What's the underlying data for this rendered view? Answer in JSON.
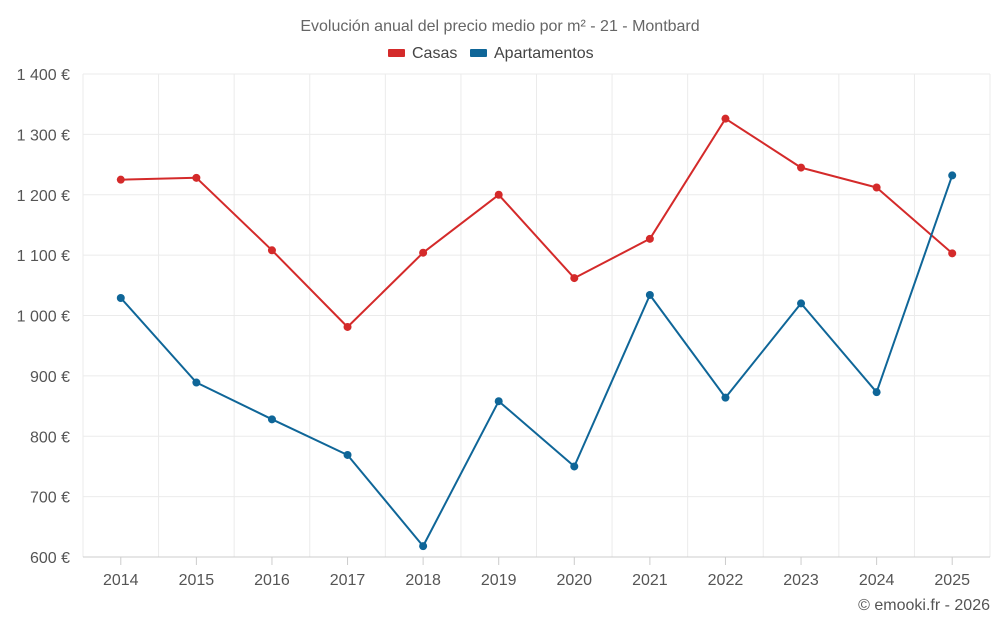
{
  "chart_data": {
    "type": "line",
    "title": "Evolución anual del precio medio por m² - 21 - Montbard",
    "xlabel": "",
    "ylabel": "",
    "categories": [
      "2014",
      "2015",
      "2016",
      "2017",
      "2018",
      "2019",
      "2020",
      "2021",
      "2022",
      "2023",
      "2024",
      "2025"
    ],
    "series": [
      {
        "name": "Casas",
        "color": "#d42a2a",
        "values": [
          1225,
          1228,
          1108,
          981,
          1104,
          1200,
          1062,
          1127,
          1326,
          1245,
          1212,
          1103
        ]
      },
      {
        "name": "Apartamentos",
        "color": "#0f6698",
        "values": [
          1029,
          889,
          828,
          769,
          618,
          858,
          750,
          1034,
          864,
          1020,
          873,
          1232
        ]
      }
    ],
    "ylim": [
      600,
      1400
    ],
    "yticks": [
      600,
      700,
      800,
      900,
      1000,
      1100,
      1200,
      1300,
      1400
    ],
    "ytick_labels": [
      "600 €",
      "700 €",
      "800 €",
      "900 €",
      "1 000 €",
      "1 100 €",
      "1 200 €",
      "1 300 €",
      "1 400 €"
    ],
    "grid": true,
    "legend_position": "top-center",
    "credit": "© emooki.fr - 2026"
  }
}
